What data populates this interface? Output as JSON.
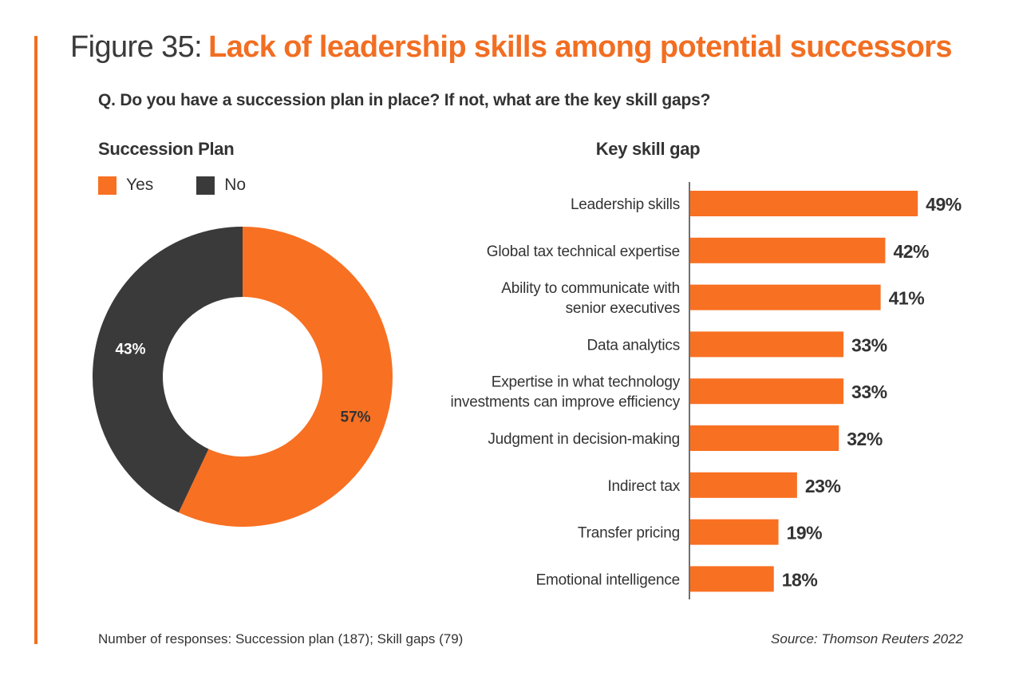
{
  "header": {
    "figure_label": "Figure 35:",
    "title": "Lack of leadership skills among potential successors",
    "question": "Q. Do you have a succession plan in place? If not, what are the key skill gaps?"
  },
  "colors": {
    "accent": "#f26e22",
    "bar": "#f87022",
    "dark": "#3a3a3a",
    "text": "#333333"
  },
  "chart_data": [
    {
      "type": "pie",
      "variant": "donut",
      "title": "Succession Plan",
      "legend_position": "top-left",
      "categories": [
        "Yes",
        "No"
      ],
      "values": [
        57,
        43
      ],
      "labels": [
        "57%",
        "43%"
      ],
      "colors": [
        "#f87022",
        "#3a3a3a"
      ]
    },
    {
      "type": "bar",
      "orientation": "horizontal",
      "title": "Key skill gap",
      "categories": [
        [
          "Leadership skills"
        ],
        [
          "Global tax technical expertise"
        ],
        [
          "Ability to communicate with",
          "senior executives"
        ],
        [
          "Data analytics"
        ],
        [
          "Expertise in what technology",
          "investments can improve efficiency"
        ],
        [
          "Judgment in decision-making"
        ],
        [
          "Indirect tax"
        ],
        [
          "Transfer pricing"
        ],
        [
          "Emotional intelligence"
        ]
      ],
      "values": [
        49,
        42,
        41,
        33,
        33,
        32,
        23,
        19,
        18
      ],
      "labels": [
        "49%",
        "42%",
        "41%",
        "33%",
        "33%",
        "32%",
        "23%",
        "19%",
        "18%"
      ],
      "unit": "%",
      "xlim": [
        0,
        50
      ],
      "grid": false
    }
  ],
  "footer": {
    "responses": "Number of responses: Succession plan (187); Skill gaps (79)",
    "source": "Source: Thomson Reuters 2022"
  }
}
